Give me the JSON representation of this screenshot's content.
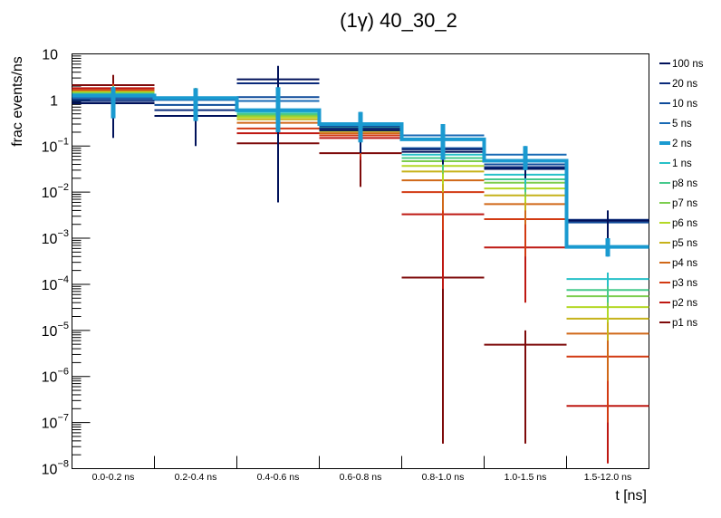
{
  "chart_data": {
    "type": "line",
    "subtype": "step-histogram-with-error-bars",
    "title": "(1γ) 40_30_2",
    "xlabel": "t [ns]",
    "ylabel": "frac events/ns",
    "yscale": "log",
    "ylim": [
      1e-08,
      10
    ],
    "ytick_labels": [
      {
        "value": 10,
        "base": "10",
        "exp": ""
      },
      {
        "value": 1,
        "base": "1",
        "exp": ""
      },
      {
        "value": 0.1,
        "base": "10",
        "exp": "−1"
      },
      {
        "value": 0.01,
        "base": "10",
        "exp": "−2"
      },
      {
        "value": 0.001,
        "base": "10",
        "exp": "−3"
      },
      {
        "value": 0.0001,
        "base": "10",
        "exp": "−4"
      },
      {
        "value": 1e-05,
        "base": "10",
        "exp": "−5"
      },
      {
        "value": 1e-06,
        "base": "10",
        "exp": "−6"
      },
      {
        "value": 1e-07,
        "base": "10",
        "exp": "−7"
      },
      {
        "value": 1e-08,
        "base": "10",
        "exp": "−8"
      }
    ],
    "categories": [
      "0.0-0.2 ns",
      "0.2-0.4 ns",
      "0.4-0.6 ns",
      "0.6-0.8 ns",
      "0.8-1.0 ns",
      "1.0-1.5 ns",
      "1.5-12.0 ns"
    ],
    "legend_position": "right",
    "grid": false,
    "series": [
      {
        "name": "100 ns",
        "color": "#00115a",
        "highlight": false,
        "values": [
          0.85,
          0.45,
          2.8,
          0.22,
          0.075,
          0.032,
          0.0024
        ],
        "err_low": [
          0.15,
          0.1,
          0.006,
          0.07,
          0.04,
          0.02,
          0.0005
        ],
        "err_high": [
          1.5,
          1.0,
          5.5,
          0.4,
          0.15,
          0.05,
          0.004
        ]
      },
      {
        "name": "20 ns",
        "color": "#0a2a7a",
        "highlight": false,
        "values": [
          0.95,
          0.6,
          2.3,
          0.24,
          0.085,
          0.035,
          0.0025
        ],
        "err_low": [
          0.3,
          0.2,
          0.2,
          0.1,
          0.05,
          0.02,
          0.0005
        ],
        "err_high": [
          1.6,
          1.2,
          4.5,
          0.45,
          0.16,
          0.06,
          0.004
        ]
      },
      {
        "name": "10 ns",
        "color": "#0e4b9a",
        "highlight": false,
        "values": [
          1.05,
          0.78,
          1.15,
          0.27,
          0.09,
          0.04,
          0.0022
        ],
        "err_low": [
          0.35,
          0.25,
          0.25,
          0.1,
          0.05,
          0.02,
          0.0005
        ],
        "err_high": [
          1.7,
          1.4,
          3.5,
          0.5,
          0.18,
          0.07,
          0.0035
        ]
      },
      {
        "name": "5 ns",
        "color": "#1769b4",
        "highlight": false,
        "values": [
          1.15,
          1.0,
          0.95,
          0.3,
          0.17,
          0.065,
          0.00065
        ],
        "err_low": [
          0.4,
          0.35,
          0.3,
          0.12,
          0.06,
          0.03,
          0.0004
        ],
        "err_high": [
          1.8,
          1.6,
          2.5,
          0.55,
          0.3,
          0.1,
          0.001
        ]
      },
      {
        "name": "2 ns",
        "color": "#1a9ad0",
        "highlight": true,
        "values": [
          1.25,
          1.1,
          0.6,
          0.3,
          0.14,
          0.048,
          0.00065
        ],
        "err_low": [
          0.4,
          0.35,
          0.2,
          0.12,
          0.05,
          0.03,
          0.0004
        ],
        "err_high": [
          1.9,
          1.8,
          1.9,
          0.55,
          0.3,
          0.1,
          0.001
        ]
      },
      {
        "name": "1 ns",
        "color": "#26c0c8",
        "highlight": false,
        "values": [
          1.3,
          1.1,
          0.55,
          0.28,
          0.065,
          0.024,
          0.00013
        ],
        "err_low": [
          0.4,
          0.35,
          0.2,
          0.12,
          0.04,
          0.015,
          9e-05
        ],
        "err_high": [
          1.9,
          1.8,
          1.5,
          0.5,
          0.12,
          0.04,
          0.00018
        ]
      },
      {
        "name": "p8 ns",
        "color": "#45c98c",
        "highlight": false,
        "values": [
          1.35,
          1.1,
          0.5,
          0.26,
          0.055,
          0.019,
          7.5e-05
        ],
        "err_low": [
          0.4,
          0.35,
          0.2,
          0.1,
          0.03,
          0.01,
          4e-05
        ],
        "err_high": [
          2.0,
          1.8,
          1.4,
          0.45,
          0.1,
          0.03,
          0.00012
        ]
      },
      {
        "name": "p7 ns",
        "color": "#7ccd4e",
        "highlight": false,
        "values": [
          1.4,
          1.1,
          0.46,
          0.24,
          0.047,
          0.016,
          5.5e-05
        ],
        "err_low": [
          0.4,
          0.35,
          0.2,
          0.1,
          0.025,
          0.008,
          3e-05
        ],
        "err_high": [
          2.0,
          1.8,
          1.3,
          0.45,
          0.09,
          0.025,
          9e-05
        ]
      },
      {
        "name": "p6 ns",
        "color": "#b4d825",
        "highlight": false,
        "values": [
          1.45,
          1.1,
          0.42,
          0.22,
          0.037,
          0.012,
          3.2e-05
        ],
        "err_low": [
          0.4,
          0.35,
          0.15,
          0.09,
          0.015,
          0.006,
          1.5e-05
        ],
        "err_high": [
          2.0,
          1.8,
          1.2,
          0.4,
          0.07,
          0.02,
          6e-05
        ]
      },
      {
        "name": "p5 ns",
        "color": "#c6b21a",
        "highlight": false,
        "values": [
          1.5,
          1.1,
          0.38,
          0.21,
          0.028,
          0.0085,
          1.8e-05
        ],
        "err_low": [
          0.4,
          0.35,
          0.15,
          0.08,
          0.01,
          0.004,
          6e-06
        ],
        "err_high": [
          2.0,
          1.8,
          1.2,
          0.4,
          0.06,
          0.015,
          3.5e-05
        ]
      },
      {
        "name": "p4 ns",
        "color": "#d06818",
        "highlight": false,
        "values": [
          1.55,
          1.1,
          0.32,
          0.19,
          0.018,
          0.0055,
          8.5e-06
        ],
        "err_low": [
          0.4,
          0.35,
          0.1,
          0.07,
          0.004,
          0.002,
          8e-07
        ],
        "err_high": [
          2.1,
          1.8,
          1.1,
          0.35,
          0.04,
          0.012,
          1.8e-05
        ]
      },
      {
        "name": "p3 ns",
        "color": "#d23a12",
        "highlight": false,
        "values": [
          1.65,
          1.1,
          0.24,
          0.17,
          0.01,
          0.0026,
          2.7e-06
        ],
        "err_low": [
          0.4,
          0.35,
          0.05,
          0.06,
          0.0015,
          0.0004,
          1e-07
        ],
        "err_high": [
          2.2,
          1.8,
          1.0,
          0.35,
          0.025,
          0.006,
          6e-06
        ]
      },
      {
        "name": "p2 ns",
        "color": "#be1812",
        "highlight": false,
        "values": [
          1.8,
          1.1,
          0.19,
          0.15,
          0.0033,
          0.00063,
          2.3e-07
        ],
        "err_low": [
          0.4,
          0.35,
          0.03,
          0.05,
          8e-05,
          4e-05,
          1.3e-08
        ],
        "err_high": [
          2.3,
          1.8,
          0.9,
          0.3,
          0.012,
          0.002,
          8e-07
        ]
      },
      {
        "name": "p1 ns",
        "color": "#7e0a0a",
        "highlight": false,
        "values": [
          2.1,
          1.1,
          0.115,
          0.07,
          0.00014,
          4.9e-06,
          1e-08
        ],
        "err_low": [
          0.5,
          0.35,
          0.006,
          0.013,
          3.5e-08,
          3.5e-08,
          1e-08
        ],
        "err_high": [
          3.5,
          1.8,
          0.6,
          0.2,
          0.0007,
          1e-05,
          1e-08
        ]
      }
    ]
  }
}
